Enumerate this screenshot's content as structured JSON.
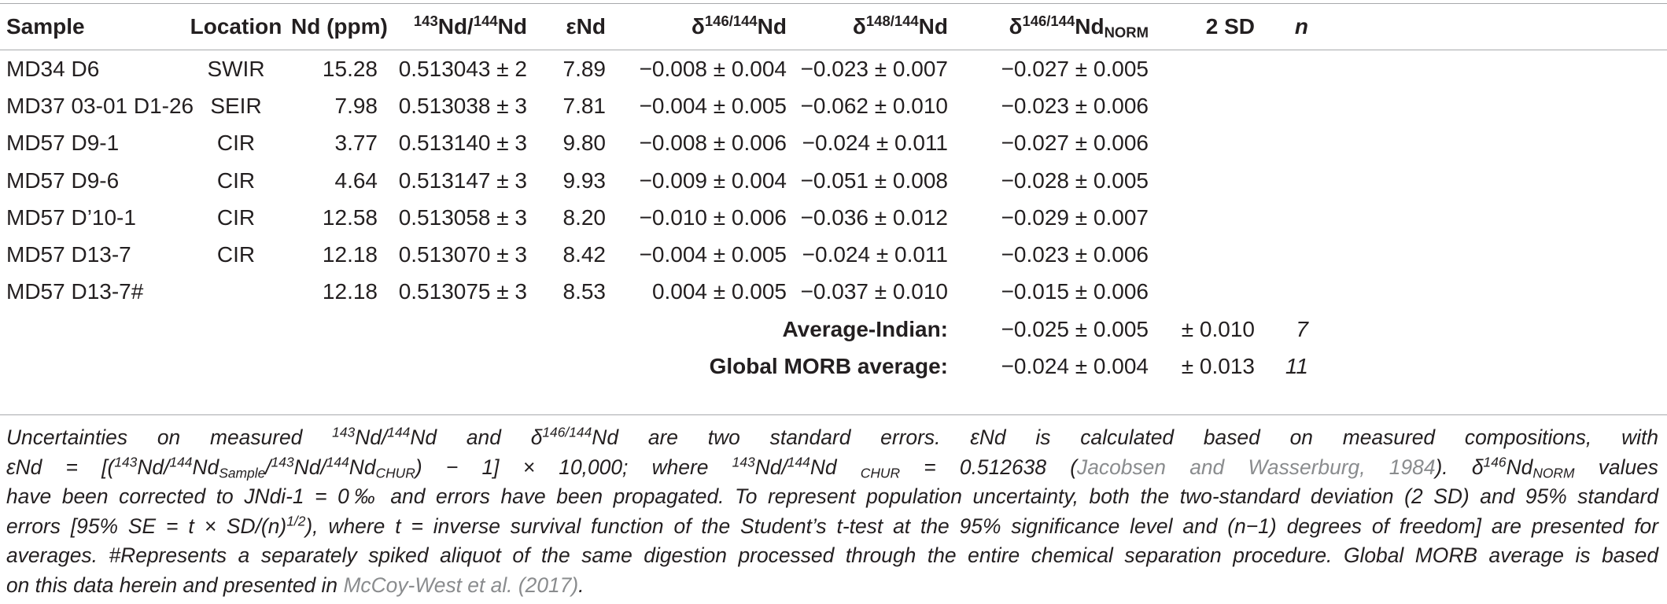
{
  "table": {
    "headers": {
      "sample": "Sample",
      "location": "Location",
      "nd": "Nd (ppm)",
      "ratio_sup1": "143",
      "ratio_main1": "Nd/",
      "ratio_sup2": "144",
      "ratio_main2": "Nd",
      "eps": "εNd",
      "d146_pre": "δ",
      "d146_sup": "146/144",
      "d146_main": "Nd",
      "d148_pre": "δ",
      "d148_sup": "148/144",
      "d148_main": "Nd",
      "dnorm_pre": "δ",
      "dnorm_sup": "146/144",
      "dnorm_main": "Nd",
      "dnorm_sub": "NORM",
      "sd": "2 SD",
      "n": "n"
    },
    "rows": [
      {
        "sample": "MD34 D6",
        "location": "SWIR",
        "nd": "15.28",
        "ratio": "0.513043 ± 2",
        "eps": "7.89",
        "d146": "−0.008 ± 0.004",
        "d148": "−0.023 ± 0.007",
        "dnorm": "−0.027 ± 0.005"
      },
      {
        "sample": "MD37 03-01 D1-26",
        "location": "SEIR",
        "nd": "7.98",
        "ratio": "0.513038 ± 3",
        "eps": "7.81",
        "d146": "−0.004 ± 0.005",
        "d148": "−0.062 ± 0.010",
        "dnorm": "−0.023 ± 0.006"
      },
      {
        "sample": "MD57 D9-1",
        "location": "CIR",
        "nd": "3.77",
        "ratio": "0.513140 ± 3",
        "eps": "9.80",
        "d146": "−0.008 ± 0.006",
        "d148": "−0.024 ± 0.011",
        "dnorm": "−0.027 ± 0.006"
      },
      {
        "sample": "MD57 D9-6",
        "location": "CIR",
        "nd": "4.64",
        "ratio": "0.513147 ± 3",
        "eps": "9.93",
        "d146": "−0.009 ± 0.004",
        "d148": "−0.051 ± 0.008",
        "dnorm": "−0.028 ± 0.005"
      },
      {
        "sample": "MD57 D’10-1",
        "location": "CIR",
        "nd": "12.58",
        "ratio": "0.513058 ± 3",
        "eps": "8.20",
        "d146": "−0.010 ± 0.006",
        "d148": "−0.036 ± 0.012",
        "dnorm": "−0.029 ± 0.007"
      },
      {
        "sample": "MD57 D13-7",
        "location": "CIR",
        "nd": "12.18",
        "ratio": "0.513070 ± 3",
        "eps": "8.42",
        "d146": "−0.004 ± 0.005",
        "d148": "−0.024 ± 0.011",
        "dnorm": "−0.023 ± 0.006"
      },
      {
        "sample": "MD57 D13-7#",
        "location": "",
        "nd": "12.18",
        "ratio": "0.513075 ± 3",
        "eps": "8.53",
        "d146": "0.004 ± 0.005",
        "d148": "−0.037 ± 0.010",
        "dnorm": "−0.015 ± 0.006"
      }
    ],
    "summary": [
      {
        "label": "Average-Indian:",
        "dnorm": "−0.025 ± 0.005",
        "sd": "± 0.010",
        "n": "7"
      },
      {
        "label": "Global MORB average:",
        "dnorm": "−0.024 ± 0.004",
        "sd": "± 0.013",
        "n": "11"
      }
    ]
  },
  "footnote": {
    "l1_a": "Uncertainties on measured ",
    "l1_sup1": "143",
    "l1_b": "Nd/",
    "l1_sup2": "144",
    "l1_c": "Nd and δ",
    "l1_sup3": "146/144",
    "l1_d": "Nd are two standard errors. εNd is calculated based on measured compositions, with",
    "l2_a": "εNd = [(",
    "l2_sup1": "143",
    "l2_b": "Nd/",
    "l2_sup2": "144",
    "l2_c": "Nd",
    "l2_sub1": "Sample",
    "l2_d": "/",
    "l2_sup3": "143",
    "l2_e": "Nd/",
    "l2_sup4": "144",
    "l2_f": "Nd",
    "l2_sub2": "CHUR",
    "l2_g": ") − 1] × 10,000; where ",
    "l2_sup5": "143",
    "l2_h": "Nd/",
    "l2_sup6": "144",
    "l2_i": "Nd ",
    "l2_sub3": "CHUR",
    "l2_j": " = 0.512638 (",
    "l2_ref": "Jacobsen and Wasserburg, 1984",
    "l2_k": "). δ",
    "l2_sup7": "146",
    "l2_l": "Nd",
    "l2_sub4": "NORM",
    "l2_m": " values",
    "l3": "have been corrected to JNdi-1 = 0‰ and errors have been propagated. To represent population uncertainty, both the two-standard deviation (2 SD) and 95% standard",
    "l4_a": "errors [95% SE = t × SD/(n)",
    "l4_sup": "1/2",
    "l4_b": "), where t = inverse survival function of the Student’s t-test at the 95% significance level and (n−1) degrees of freedom] are presented for",
    "l5": "averages. #Represents a separately spiked aliquot of the same digestion processed through the entire chemical separation procedure. Global MORB average is based",
    "l6_a": "on this data herein and presented in ",
    "l6_ref": "McCoy-West et al. (2017)",
    "l6_b": "."
  }
}
